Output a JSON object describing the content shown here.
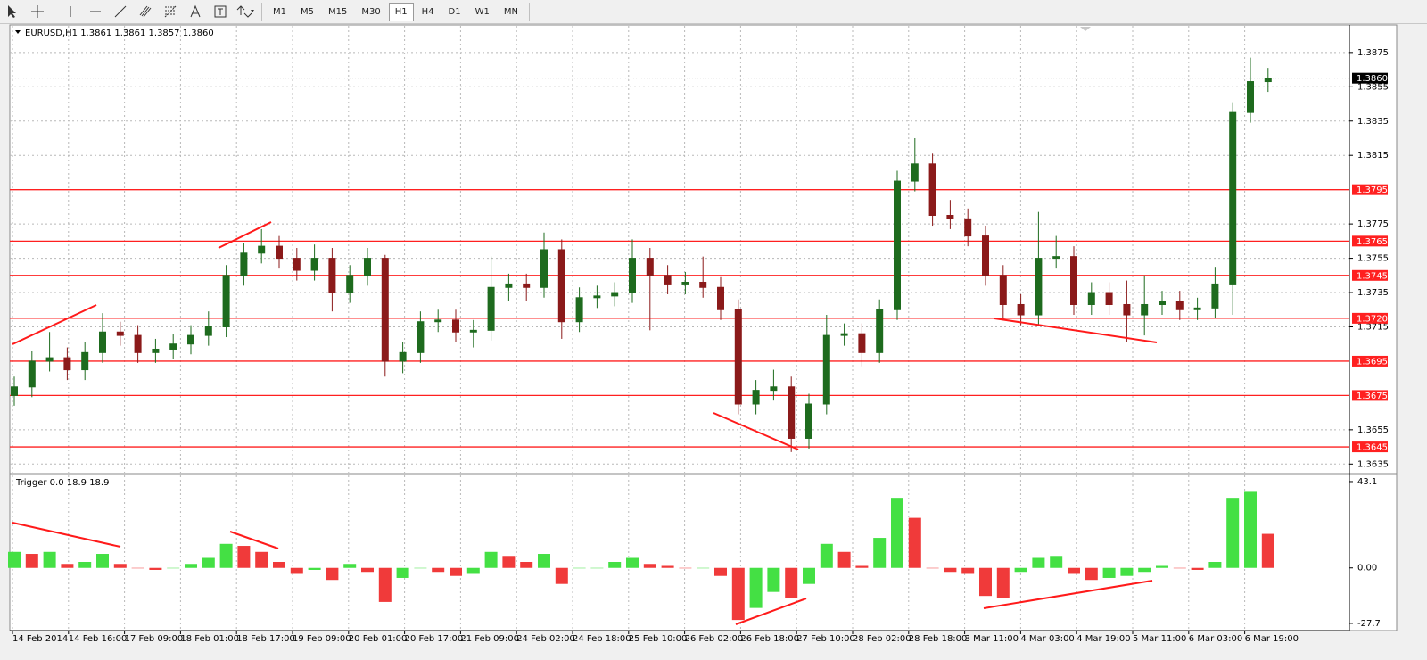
{
  "toolbar": {
    "timeframes": [
      "M1",
      "M5",
      "M15",
      "M30",
      "H1",
      "H4",
      "D1",
      "W1",
      "MN"
    ]
  },
  "x_labels": [
    "14 Feb 2014",
    "14 Feb 16:00",
    "17 Feb 09:00",
    "18 Feb 01:00",
    "18 Feb 17:00",
    "19 Feb 09:00",
    "20 Feb 01:00",
    "20 Feb 17:00",
    "21 Feb 09:00",
    "24 Feb 02:00",
    "24 Feb 18:00",
    "25 Feb 10:00",
    "26 Feb 02:00",
    "26 Feb 18:00",
    "27 Feb 10:00",
    "28 Feb 02:00",
    "28 Feb 18:00",
    "3 Mar 11:00",
    "4 Mar 03:00",
    "4 Mar 19:00",
    "5 Mar 11:00",
    "6 Mar 03:00",
    "6 Mar 19:00"
  ],
  "chart_data": [
    {
      "type": "candlestick",
      "title": "EURUSD,H1  1.3861 1.3861 1.3857 1.3860",
      "up_color": "#1e6b1e",
      "down_color": "#8b1a1a",
      "level_color": "#ff2020",
      "ylim": [
        1.3631,
        1.389
      ],
      "yticks": [
        1.3635,
        1.3655,
        1.3715,
        1.3735,
        1.3755,
        1.3775,
        1.3815,
        1.3835,
        1.3855,
        1.3875
      ],
      "levels": [
        1.3795,
        1.3765,
        1.3745,
        {
          "value": 1.372,
          "label": "1.3720"
        },
        1.3695,
        1.3675,
        1.3645
      ],
      "last_price": {
        "value": 1.386,
        "label": "1.3860"
      },
      "open": [
        1.3675,
        1.368,
        1.3695,
        1.3697,
        1.369,
        1.37,
        1.3712,
        1.371,
        1.37,
        1.3702,
        1.3705,
        1.371,
        1.3715,
        1.3745,
        1.3758,
        1.3762,
        1.3755,
        1.3748,
        1.3755,
        1.3735,
        1.3745,
        1.3755,
        1.3695,
        1.37,
        1.3718,
        1.3719,
        1.3712,
        1.3713,
        1.3738,
        1.374,
        1.3738,
        1.376,
        1.3718,
        1.3732,
        1.3733,
        1.3735,
        1.3755,
        1.3745,
        1.374,
        1.3741,
        1.3738,
        1.3725,
        1.367,
        1.3678,
        1.368,
        1.365,
        1.367,
        1.371,
        1.3711,
        1.37,
        1.3725,
        1.38,
        1.381,
        1.378,
        1.3778,
        1.3768,
        1.3745,
        1.3728,
        1.3722,
        1.3755,
        1.3756,
        1.3728,
        1.3735,
        1.3728,
        1.3722,
        1.3728,
        1.373,
        1.3725,
        1.3726,
        1.374,
        1.384,
        1.3858
      ],
      "high": [
        1.3686,
        1.3701,
        1.3712,
        1.3703,
        1.3706,
        1.3723,
        1.3718,
        1.3716,
        1.3708,
        1.3711,
        1.3716,
        1.3724,
        1.3751,
        1.3764,
        1.3772,
        1.3768,
        1.3761,
        1.3763,
        1.3761,
        1.3751,
        1.3761,
        1.3757,
        1.3706,
        1.3724,
        1.3725,
        1.3725,
        1.3719,
        1.3756,
        1.3746,
        1.3746,
        1.377,
        1.3766,
        1.3738,
        1.3739,
        1.3741,
        1.3766,
        1.3761,
        1.3751,
        1.3747,
        1.3756,
        1.3744,
        1.3731,
        1.3684,
        1.369,
        1.3686,
        1.3676,
        1.3722,
        1.3717,
        1.3717,
        1.3731,
        1.3806,
        1.3825,
        1.3816,
        1.3789,
        1.3784,
        1.3774,
        1.3751,
        1.3734,
        1.3782,
        1.3768,
        1.3762,
        1.3741,
        1.3741,
        1.3742,
        1.3745,
        1.3736,
        1.3736,
        1.3732,
        1.375,
        1.3846,
        1.3872,
        1.3866
      ],
      "low": [
        1.3669,
        1.3674,
        1.3689,
        1.3684,
        1.3684,
        1.3694,
        1.3704,
        1.3694,
        1.3694,
        1.3696,
        1.3699,
        1.3704,
        1.3709,
        1.3739,
        1.3752,
        1.3749,
        1.3742,
        1.3742,
        1.3724,
        1.3729,
        1.3739,
        1.3686,
        1.3688,
        1.3694,
        1.3712,
        1.3706,
        1.3703,
        1.3707,
        1.373,
        1.373,
        1.3732,
        1.3708,
        1.3712,
        1.3726,
        1.3727,
        1.3729,
        1.3713,
        1.3734,
        1.3734,
        1.3732,
        1.3719,
        1.3664,
        1.3664,
        1.3672,
        1.3642,
        1.3644,
        1.3664,
        1.3704,
        1.3692,
        1.3694,
        1.3719,
        1.3794,
        1.3774,
        1.3772,
        1.3762,
        1.3739,
        1.372,
        1.3716,
        1.3716,
        1.3749,
        1.3722,
        1.3722,
        1.3722,
        1.3706,
        1.371,
        1.3722,
        1.3719,
        1.3719,
        1.372,
        1.3722,
        1.3834,
        1.3852
      ],
      "close": [
        1.368,
        1.3695,
        1.3697,
        1.369,
        1.37,
        1.3712,
        1.371,
        1.37,
        1.3702,
        1.3705,
        1.371,
        1.3715,
        1.3745,
        1.3758,
        1.3762,
        1.3755,
        1.3748,
        1.3755,
        1.3735,
        1.3745,
        1.3755,
        1.3695,
        1.37,
        1.3718,
        1.3719,
        1.3712,
        1.3713,
        1.3738,
        1.374,
        1.3738,
        1.376,
        1.3718,
        1.3732,
        1.3733,
        1.3735,
        1.3755,
        1.3745,
        1.374,
        1.3741,
        1.3738,
        1.3725,
        1.367,
        1.3678,
        1.368,
        1.365,
        1.367,
        1.371,
        1.3711,
        1.37,
        1.3725,
        1.38,
        1.381,
        1.378,
        1.3778,
        1.3768,
        1.3745,
        1.3728,
        1.3722,
        1.3755,
        1.3756,
        1.3728,
        1.3735,
        1.3728,
        1.3722,
        1.3728,
        1.373,
        1.3725,
        1.3726,
        1.374,
        1.384,
        1.3858,
        1.386
      ]
    },
    {
      "type": "histogram",
      "title": "Trigger 0.0 18.9 18.9",
      "up_color": "#44e044",
      "down_color": "#f03a3a",
      "ylim": [
        -30.4,
        46.2
      ],
      "yticks": [
        43.1,
        {
          "value": 0,
          "label": "0.00"
        },
        -27.7
      ],
      "values": [
        8,
        7,
        8,
        2,
        3,
        7,
        2,
        0,
        -1,
        0,
        2,
        5,
        12,
        11,
        8,
        3,
        -3,
        -1,
        -6,
        2,
        -2,
        -17,
        -5,
        0,
        -2,
        -4,
        -3,
        8,
        6,
        3,
        7,
        -8,
        0,
        0,
        3,
        5,
        2,
        1,
        0,
        0,
        -4,
        -26,
        -20,
        -12,
        -15,
        -8,
        12,
        8,
        1,
        15,
        35,
        25,
        0,
        -2,
        -3,
        -14,
        -15,
        -2,
        5,
        6,
        -3,
        -6,
        -5,
        -4,
        -2,
        1,
        0,
        -1,
        3,
        35,
        38,
        17
      ]
    }
  ]
}
